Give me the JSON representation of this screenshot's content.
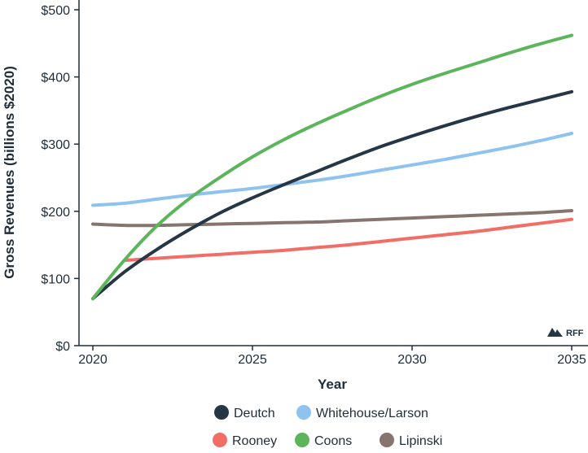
{
  "chart_data": {
    "type": "line",
    "title": "",
    "xlabel": "Year",
    "ylabel": "Gross Revenues (billions $2020)",
    "xlim": [
      2020,
      2035
    ],
    "ylim": [
      0,
      500
    ],
    "xticks": [
      2020,
      2025,
      2030,
      2035
    ],
    "xtick_labels": [
      "2020",
      "2025",
      "2030",
      "2035"
    ],
    "yticks": [
      0,
      100,
      200,
      300,
      400,
      500
    ],
    "ytick_labels": [
      "$0",
      "$100",
      "$200",
      "$300",
      "$400",
      "$500"
    ],
    "grid": false,
    "legend_position": "bottom",
    "series": [
      {
        "name": "Deutch",
        "color": "#253746",
        "x": [
          2020,
          2021,
          2022,
          2023,
          2024,
          2025,
          2026,
          2027,
          2028,
          2029,
          2030,
          2031,
          2032,
          2033,
          2034,
          2035
        ],
        "y": [
          70,
          110,
          143,
          172,
          198,
          220,
          240,
          259,
          278,
          296,
          312,
          327,
          341,
          354,
          366,
          378
        ]
      },
      {
        "name": "Whitehouse/Larson",
        "color": "#8ec3ef",
        "x": [
          2020,
          2021,
          2022,
          2023,
          2024,
          2025,
          2026,
          2027,
          2028,
          2029,
          2030,
          2031,
          2032,
          2033,
          2034,
          2035
        ],
        "y": [
          209,
          212,
          218,
          224,
          229,
          234,
          240,
          246,
          253,
          261,
          269,
          277,
          286,
          295,
          305,
          316
        ]
      },
      {
        "name": "Rooney",
        "color": "#f26d66",
        "x": [
          2021,
          2022,
          2023,
          2024,
          2025,
          2026,
          2027,
          2028,
          2029,
          2030,
          2031,
          2032,
          2033,
          2034,
          2035
        ],
        "y": [
          127,
          130,
          133,
          136,
          139,
          142,
          146,
          150,
          155,
          160,
          165,
          170,
          176,
          182,
          188
        ]
      },
      {
        "name": "Coons",
        "color": "#5db55b",
        "x": [
          2020,
          2021,
          2022,
          2023,
          2024,
          2025,
          2026,
          2027,
          2028,
          2029,
          2030,
          2031,
          2032,
          2033,
          2034,
          2035
        ],
        "y": [
          70,
          128,
          178,
          218,
          251,
          281,
          307,
          330,
          351,
          371,
          389,
          405,
          420,
          435,
          449,
          462
        ]
      },
      {
        "name": "Lipinski",
        "color": "#86746e",
        "x": [
          2020,
          2021,
          2022,
          2023,
          2024,
          2025,
          2026,
          2027,
          2028,
          2029,
          2030,
          2031,
          2032,
          2033,
          2034,
          2035
        ],
        "y": [
          181,
          179,
          179,
          180,
          181,
          182,
          183,
          184,
          186,
          188,
          190,
          192,
          194,
          196,
          198,
          201
        ]
      }
    ]
  },
  "legend": {
    "rows": [
      [
        {
          "name": "Deutch",
          "color": "#253746"
        },
        {
          "name": "Whitehouse/Larson",
          "color": "#8ec3ef"
        }
      ],
      [
        {
          "name": "Rooney",
          "color": "#f26d66"
        },
        {
          "name": "Coons",
          "color": "#5db55b"
        },
        {
          "name": "Lipinski",
          "color": "#86746e"
        }
      ]
    ]
  },
  "brand": {
    "logo_text": "RFF",
    "icon": "mountain-logo-icon",
    "color": "#253746"
  }
}
